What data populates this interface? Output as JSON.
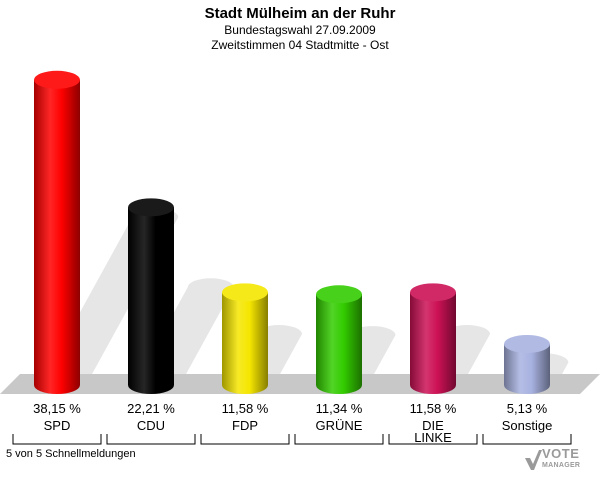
{
  "header": {
    "title": "Stadt Mülheim an der Ruhr",
    "subtitle": "Bundestagswahl 27.09.2009",
    "subtitle2": "Zweitstimmen 04 Stadtmitte - Ost"
  },
  "footer": {
    "note": "5 von 5 Schnellmeldungen"
  },
  "logo": {
    "text": "VOTE",
    "sub": "MANAGER"
  },
  "chart_data": {
    "type": "bar",
    "title": "Stadt Mülheim an der Ruhr",
    "categories": [
      "SPD",
      "CDU",
      "FDP",
      "GRÜNE",
      "DIE LINKE",
      "Sonstige"
    ],
    "category_lines": [
      [
        "SPD"
      ],
      [
        "CDU"
      ],
      [
        "FDP"
      ],
      [
        "GRÜNE"
      ],
      [
        "DIE",
        "LINKE"
      ],
      [
        "Sonstige"
      ]
    ],
    "values": [
      38.15,
      22.21,
      11.58,
      11.34,
      11.58,
      5.13
    ],
    "value_labels": [
      "38,15 %",
      "22,21 %",
      "11,58 %",
      "11,34 %",
      "11,58 %",
      "5,13 %"
    ],
    "colors": [
      "#ff0000",
      "#000000",
      "#f5e600",
      "#33cc00",
      "#cc1155",
      "#a8b2e0"
    ],
    "ylim": [
      0,
      40
    ],
    "grid": false,
    "legend": "none"
  }
}
